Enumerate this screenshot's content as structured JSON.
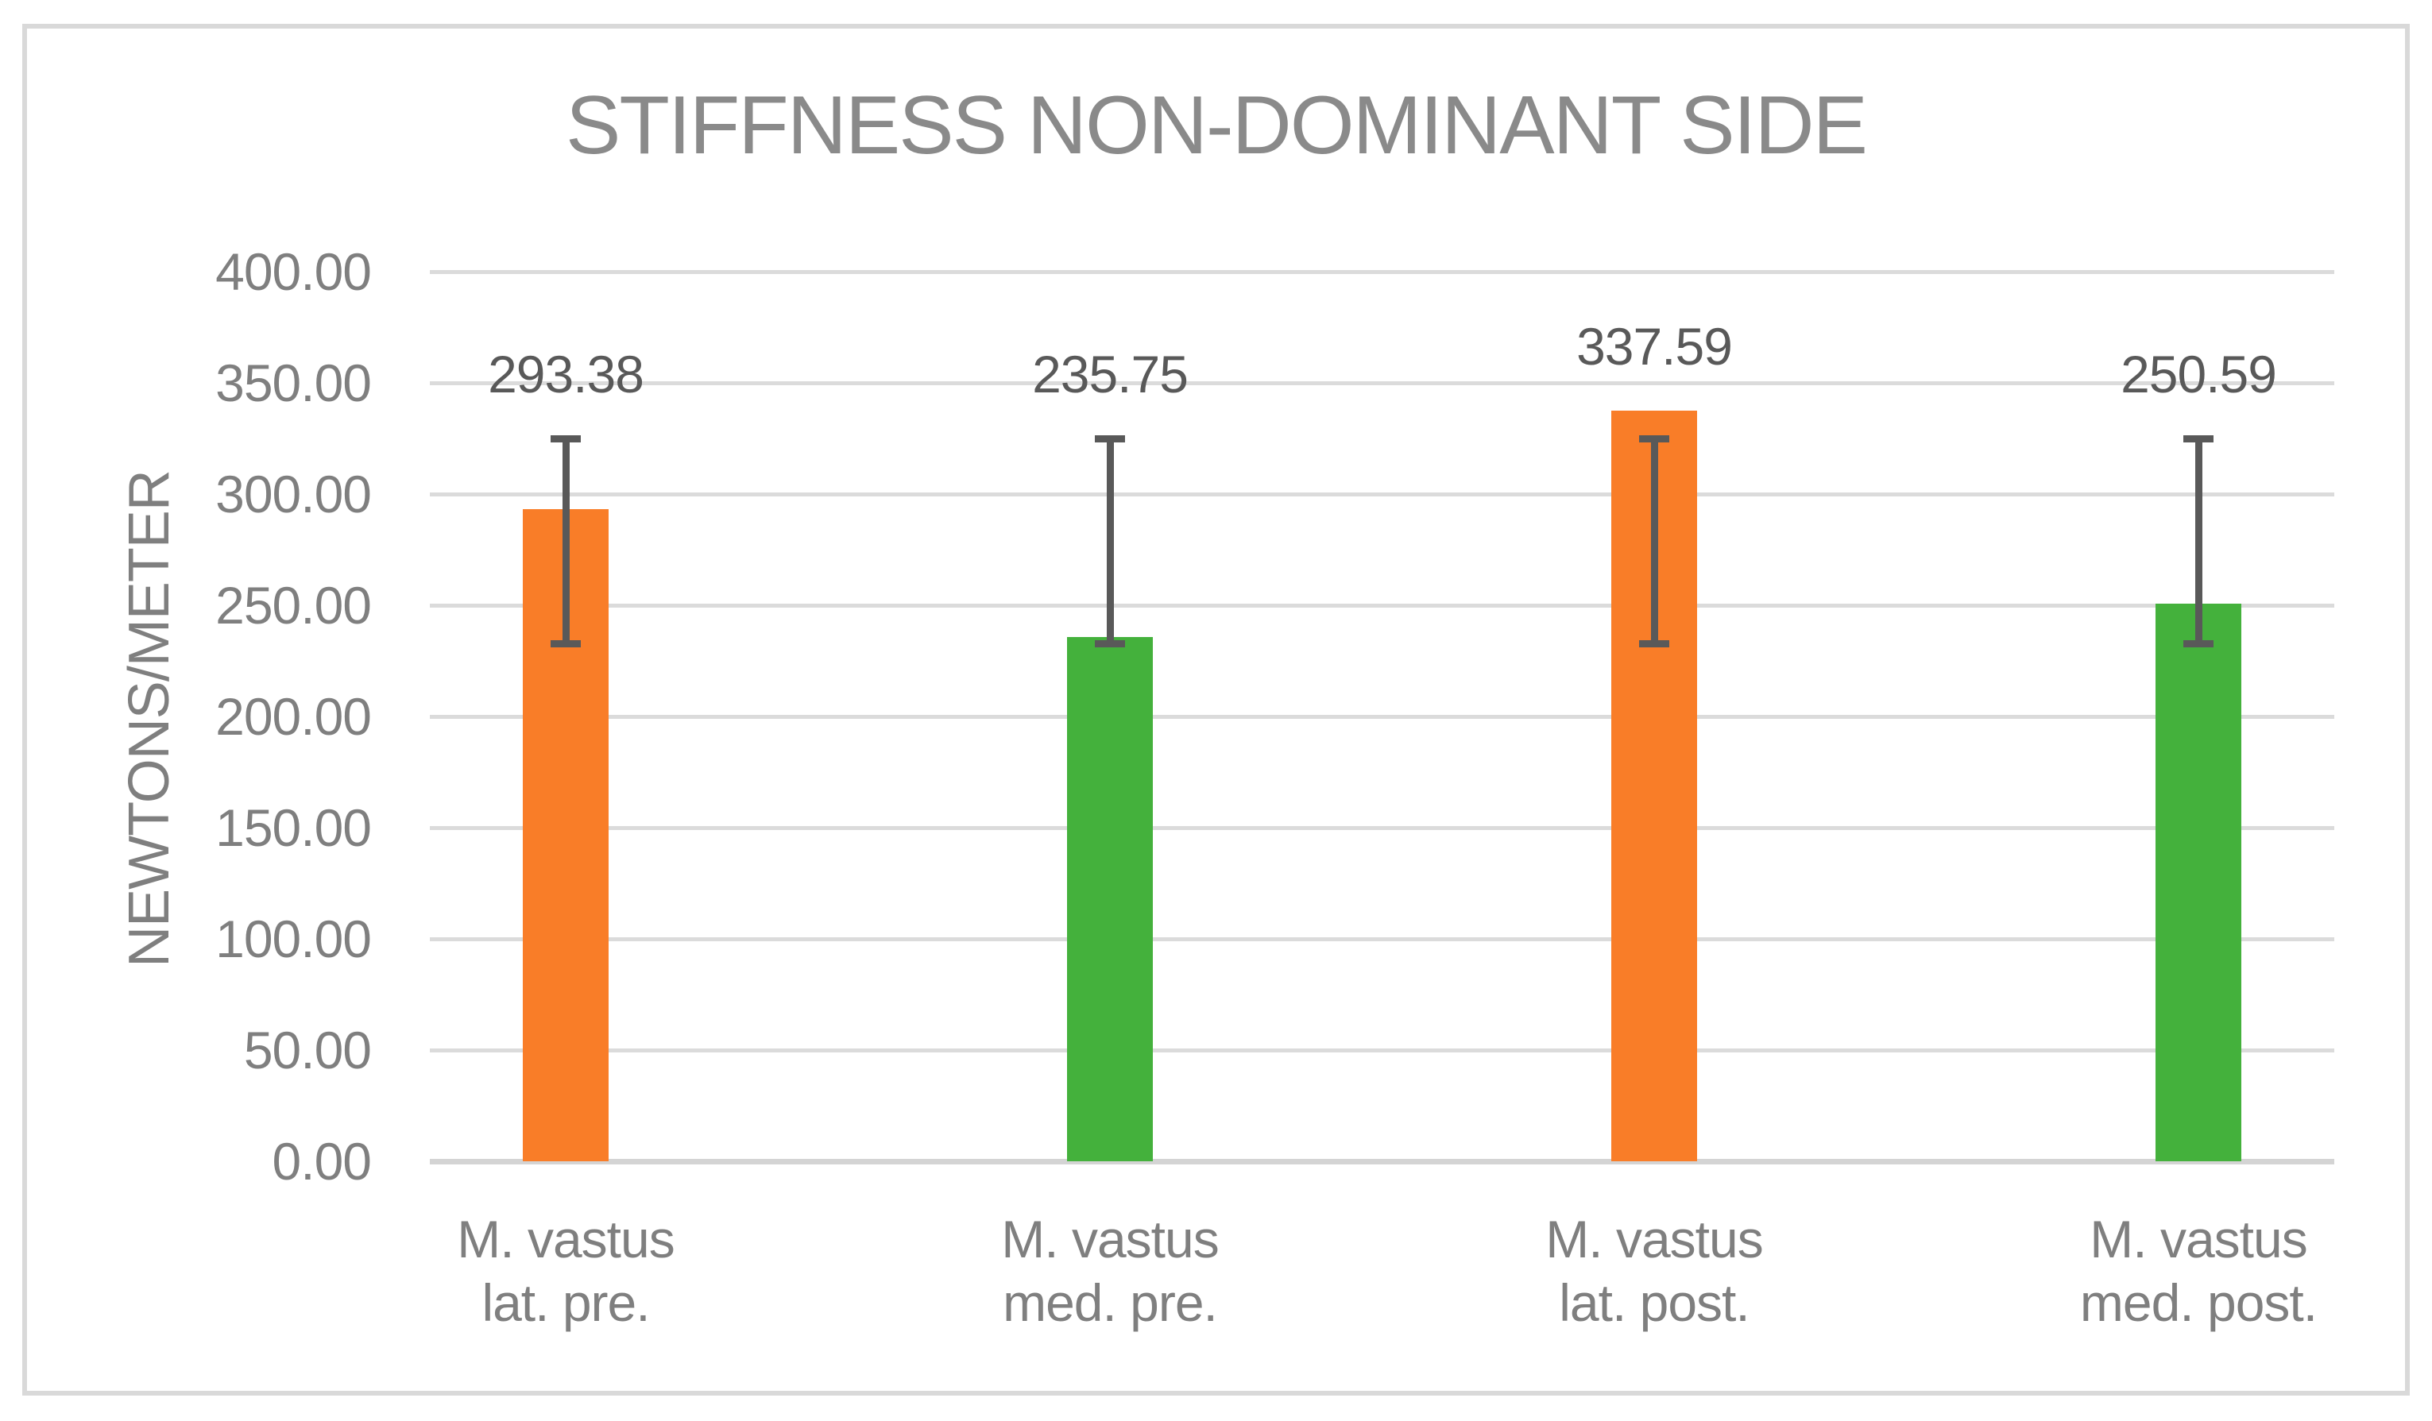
{
  "chart_data": {
    "type": "bar",
    "title": "STIFFNESS NON-DOMINANT SIDE",
    "xlabel": "",
    "ylabel": "NEWTONS/METER",
    "categories": [
      [
        "M. vastus",
        "lat. pre."
      ],
      [
        "M. vastus",
        "med. pre."
      ],
      [
        "M. vastus",
        "lat. post."
      ],
      [
        "M. vastus",
        "med. post."
      ]
    ],
    "values": [
      293.38,
      235.75,
      337.59,
      250.59
    ],
    "data_labels": [
      "293.38",
      "235.75",
      "337.59",
      "250.59"
    ],
    "bar_colors": [
      "#f97d28",
      "#44b13c",
      "#f97d28",
      "#44b13c"
    ],
    "error_bars": {
      "low": 233,
      "high": 325,
      "color": "#595959"
    },
    "y_ticks": [
      "400.00",
      "350.00",
      "300.00",
      "250.00",
      "200.00",
      "150.00",
      "100.00",
      "50.00",
      "0.00"
    ],
    "y_tick_values": [
      400,
      350,
      300,
      250,
      200,
      150,
      100,
      50,
      0
    ],
    "ylim": [
      0,
      400
    ],
    "grid": true,
    "legend": "none",
    "colors": {
      "title": "#8a8a8a",
      "axis_text": "#7f7f7f",
      "data_label": "#595959",
      "gridline": "#dbdbdb",
      "frame": "#d9d9d9",
      "background": "#ffffff"
    }
  }
}
